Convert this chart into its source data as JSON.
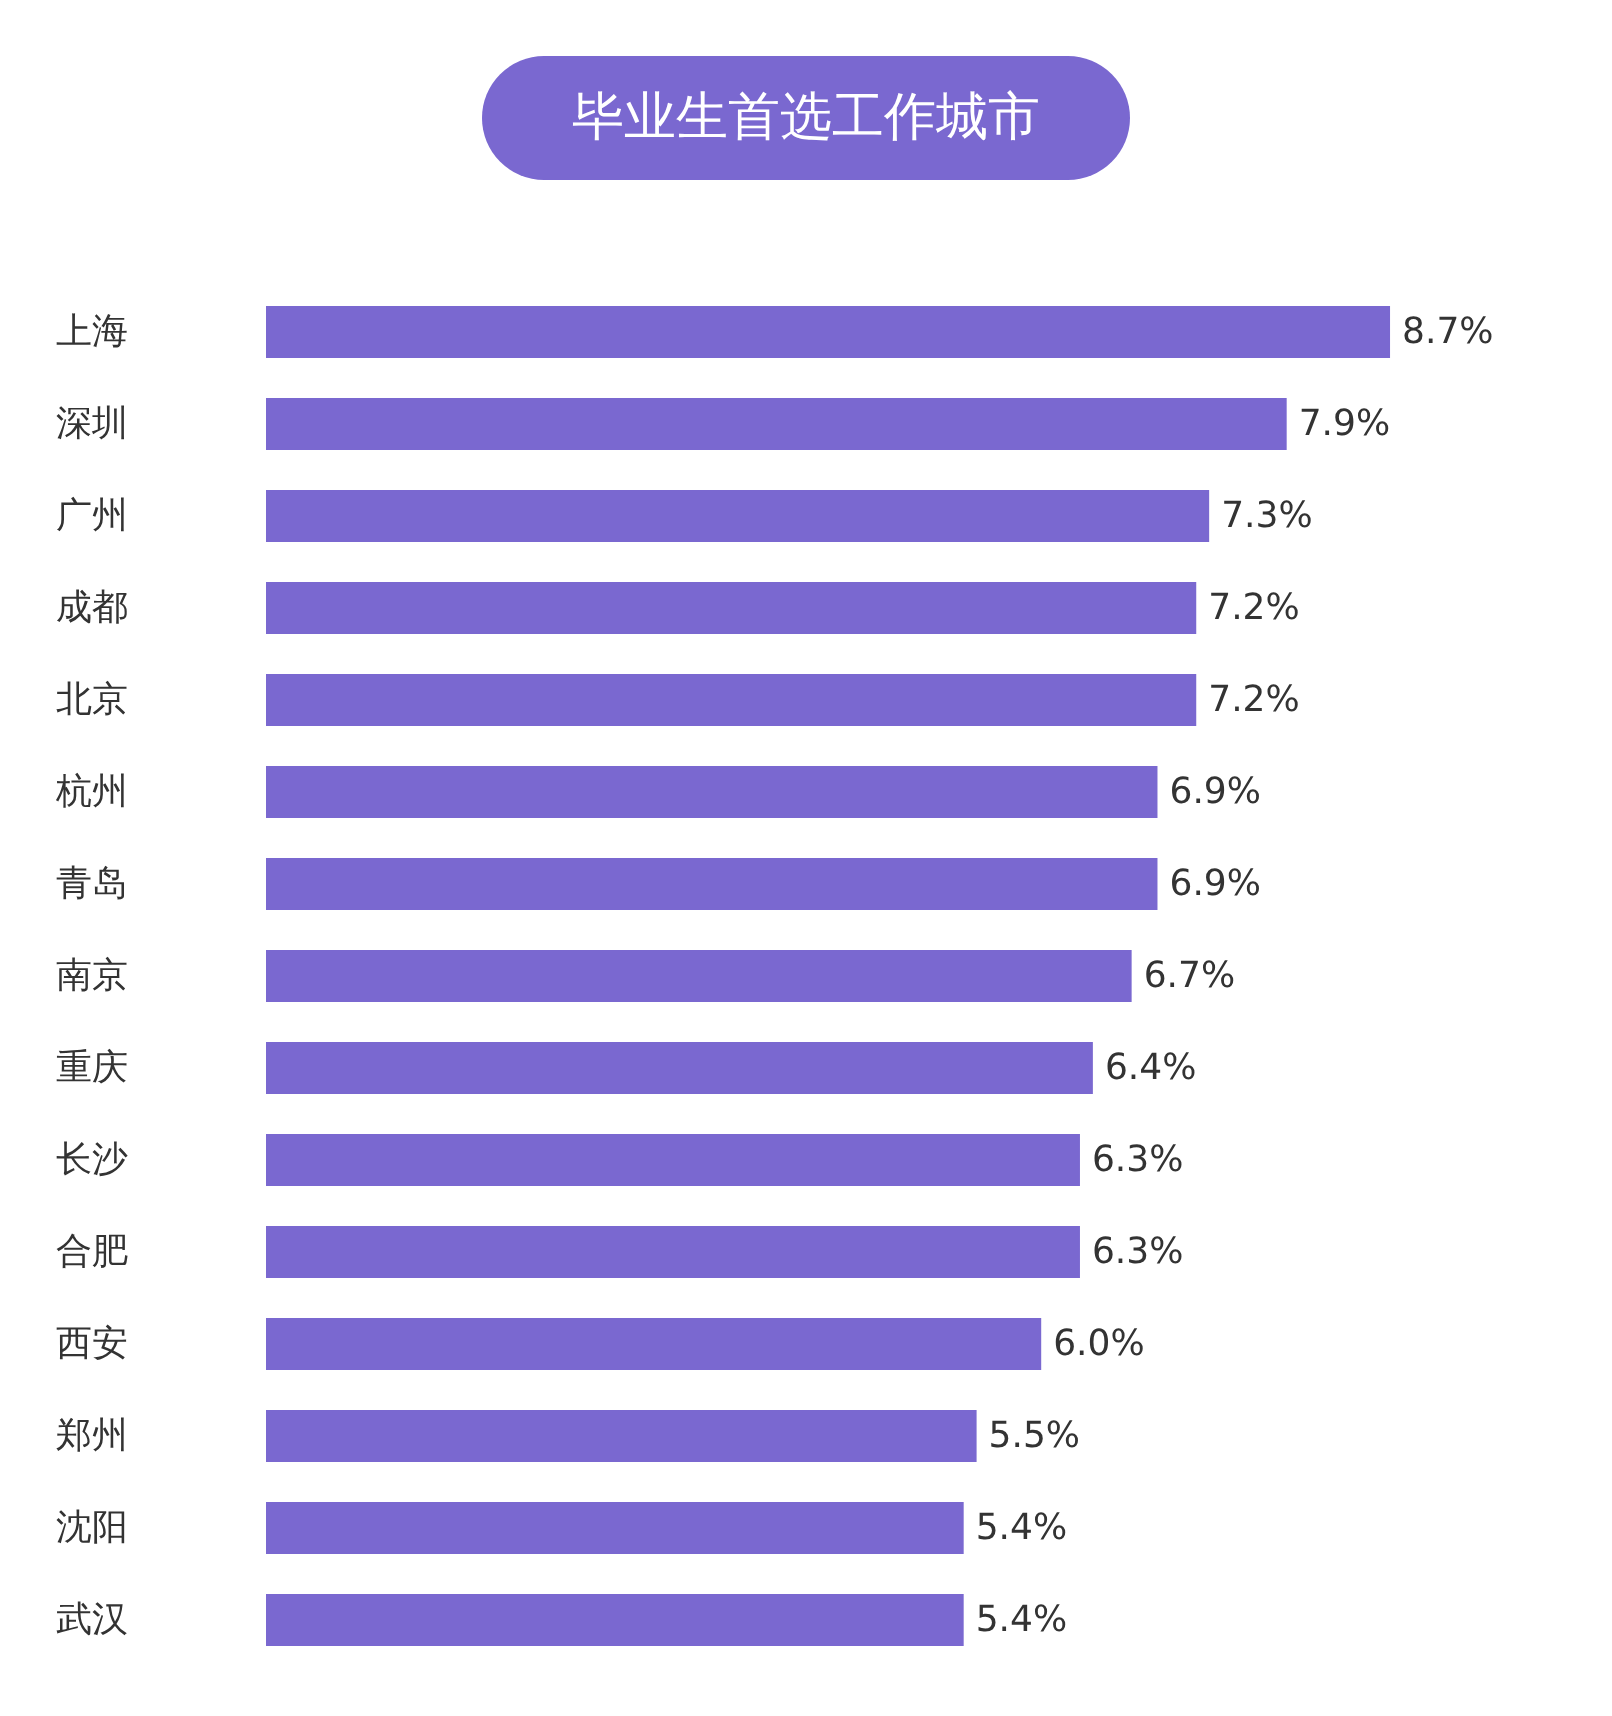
{
  "chart_data": {
    "type": "bar",
    "orientation": "horizontal",
    "title": "毕业生首选工作城市",
    "categories": [
      "上海",
      "深圳",
      "广州",
      "成都",
      "北京",
      "杭州",
      "青岛",
      "南京",
      "重庆",
      "长沙",
      "合肥",
      "西安",
      "郑州",
      "沈阳",
      "武汉"
    ],
    "values": [
      8.7,
      7.9,
      7.3,
      7.2,
      7.2,
      6.9,
      6.9,
      6.7,
      6.4,
      6.3,
      6.3,
      6.0,
      5.5,
      5.4,
      5.4
    ],
    "value_labels": [
      "8.7%",
      "7.9%",
      "7.3%",
      "7.2%",
      "7.2%",
      "6.9%",
      "6.9%",
      "6.7%",
      "6.4%",
      "6.3%",
      "6.3%",
      "6.0%",
      "5.5%",
      "5.4%",
      "5.4%"
    ],
    "color": "#7a68d0"
  }
}
